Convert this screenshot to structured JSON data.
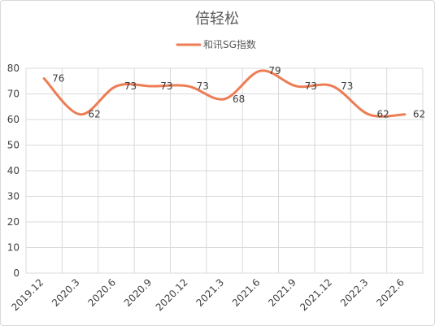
{
  "chart_data": {
    "type": "line",
    "title": "倍轻松",
    "legend_position": "top",
    "grid": true,
    "smooth": true,
    "categories": [
      "2019.12",
      "2020.3",
      "2020.6",
      "2020.9",
      "2020.12",
      "2021.3",
      "2021.6",
      "2021.9",
      "2021.12",
      "2022.3",
      "2022.6"
    ],
    "series": [
      {
        "name": "和讯SG指数",
        "color": "#ed7d54",
        "values": [
          76,
          62,
          73,
          73,
          73,
          68,
          79,
          73,
          73,
          62,
          62
        ]
      }
    ],
    "data_labels": [
      "76",
      "62",
      "73",
      "73",
      "73",
      "68",
      "79",
      "73",
      "73",
      "62",
      "62"
    ],
    "ylim": [
      0,
      80
    ],
    "yticks": [
      "0",
      "10",
      "20",
      "30",
      "40",
      "50",
      "60",
      "70",
      "80"
    ],
    "xlabel": "",
    "ylabel": ""
  }
}
